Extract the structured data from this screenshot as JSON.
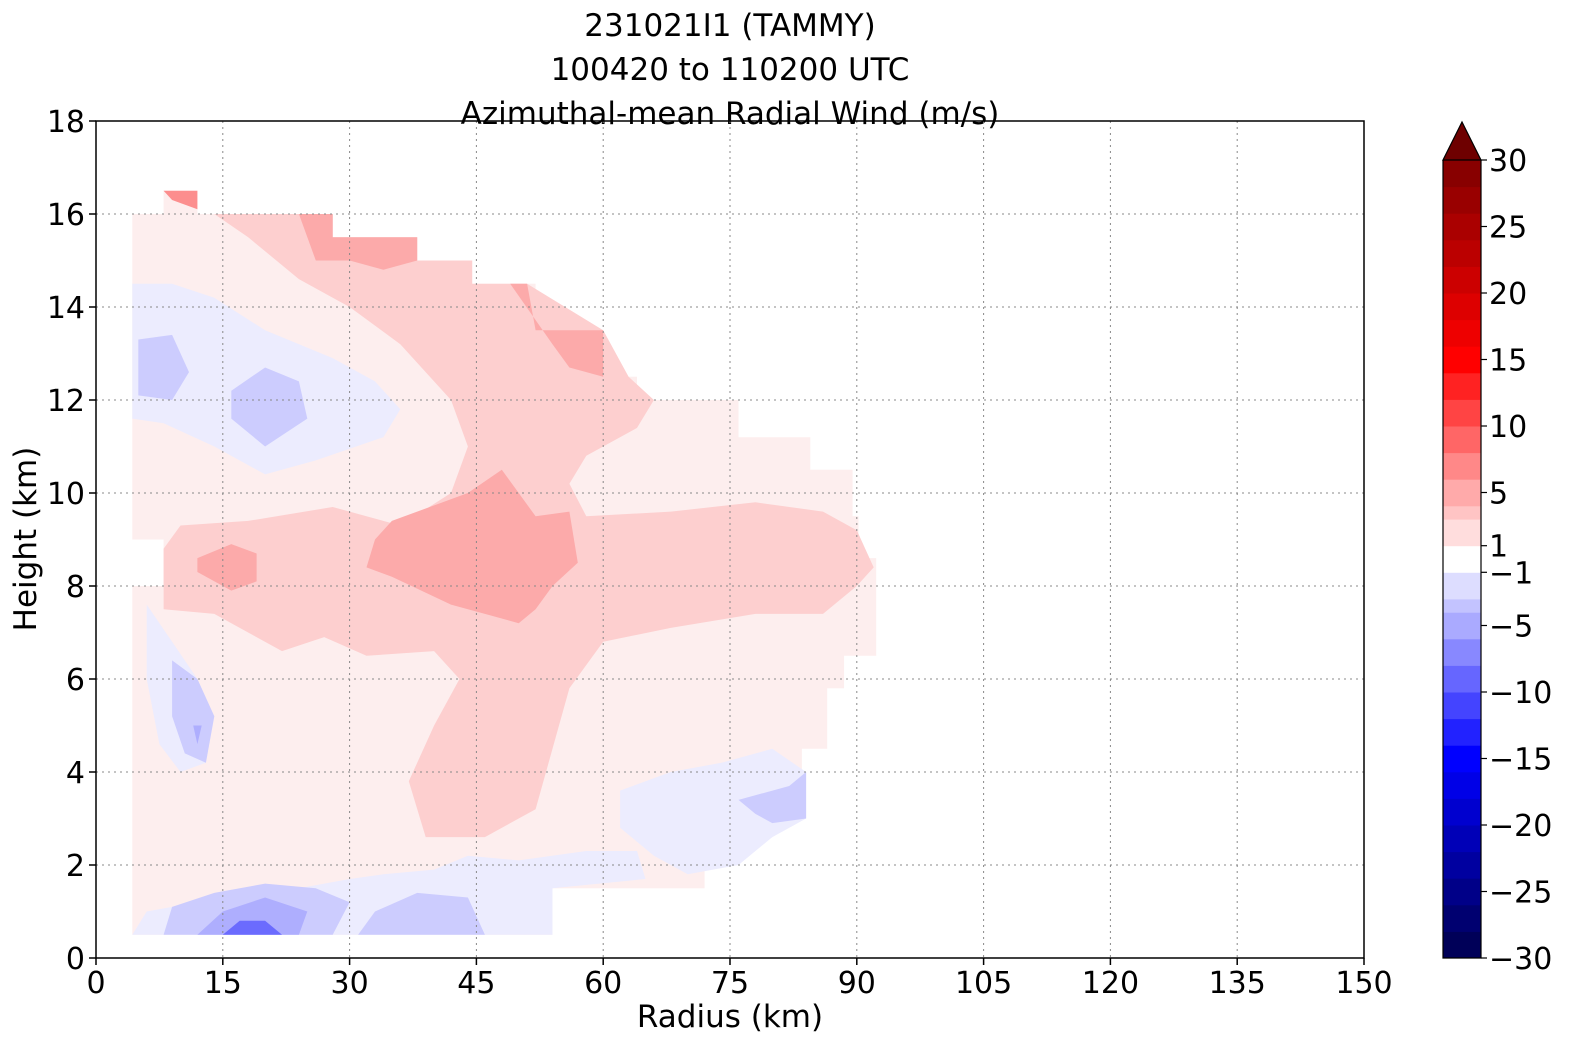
{
  "chart_data": {
    "type": "contour",
    "title_lines": [
      "231021I1 (TAMMY)",
      "100420 to 110200 UTC",
      "Azimuthal-mean Radial Wind (m/s)"
    ],
    "xlabel": "Radius (km)",
    "ylabel": "Height (km)",
    "xlim": [
      0,
      150
    ],
    "ylim": [
      0,
      18
    ],
    "xticks": [
      0,
      15,
      30,
      45,
      60,
      75,
      90,
      105,
      120,
      135,
      150
    ],
    "yticks": [
      0,
      2,
      4,
      6,
      8,
      10,
      12,
      14,
      16,
      18
    ],
    "grid": true,
    "colorbar": {
      "range": [
        -30,
        30
      ],
      "ticks": [
        30,
        25,
        20,
        15,
        10,
        5,
        1,
        -1,
        -5,
        -10,
        -15,
        -20,
        -25,
        -30
      ],
      "extend": "max",
      "colormap": "seismic",
      "levels": [
        -30,
        -28,
        -26,
        -24,
        -22,
        -20,
        -18,
        -16,
        -14,
        -12,
        -10,
        -8,
        -6,
        -4,
        -3,
        -1,
        1,
        3,
        4,
        6,
        8,
        10,
        12,
        14,
        16,
        18,
        20,
        22,
        24,
        26,
        28,
        30
      ]
    },
    "regions": [
      {
        "level": "1 to 3",
        "color": "#fdeeee",
        "approx_extent": "most of the domain r=4-92 km, z=0.5-16 km"
      },
      {
        "level": "3 to 4",
        "color": "#fdcfcf",
        "approx_extent": "upper band r=20-75 km z=10-16 km; mid band r=8-92 km z=6.5-9.5 km; diagonal tongue r=40-60 km z=2.5-6.5 km"
      },
      {
        "level": "4 to 6",
        "color": "#fcaaaa",
        "approx_extent": "core r=35-58 km z=7-10.5 km; top r=25-40 km z=15-16 km"
      },
      {
        "level": "6 to 8",
        "color": "#fc8e8e",
        "approx_extent": "thin strip at r=8-12 km z=16.5; upper edge r=52-64 km z=12.5-14.5"
      },
      {
        "level": "-3 to -1",
        "color": "#ececfe",
        "approx_extent": "r=4-40 km z=10-14.5 km; r=75-88 km z=2-4.5 km; low levels r=10-40 km z=0.5-2 km"
      },
      {
        "level": "-4 to -3",
        "color": "#ccccfe",
        "approx_extent": "r=10-26 km z=11-13.5 km; r=9-14 km z=4-6 km; r=12-30 km z=0.5-1.5 km"
      },
      {
        "level": "-8 to -4",
        "color": "#aeaefe",
        "approx_extent": "r=14-24 km z=0.5-1.2 km"
      },
      {
        "level": "-10 to -8",
        "color": "#6b6bfe",
        "approx_extent": "r=15-22 km z=0.5-0.8 km"
      }
    ]
  }
}
